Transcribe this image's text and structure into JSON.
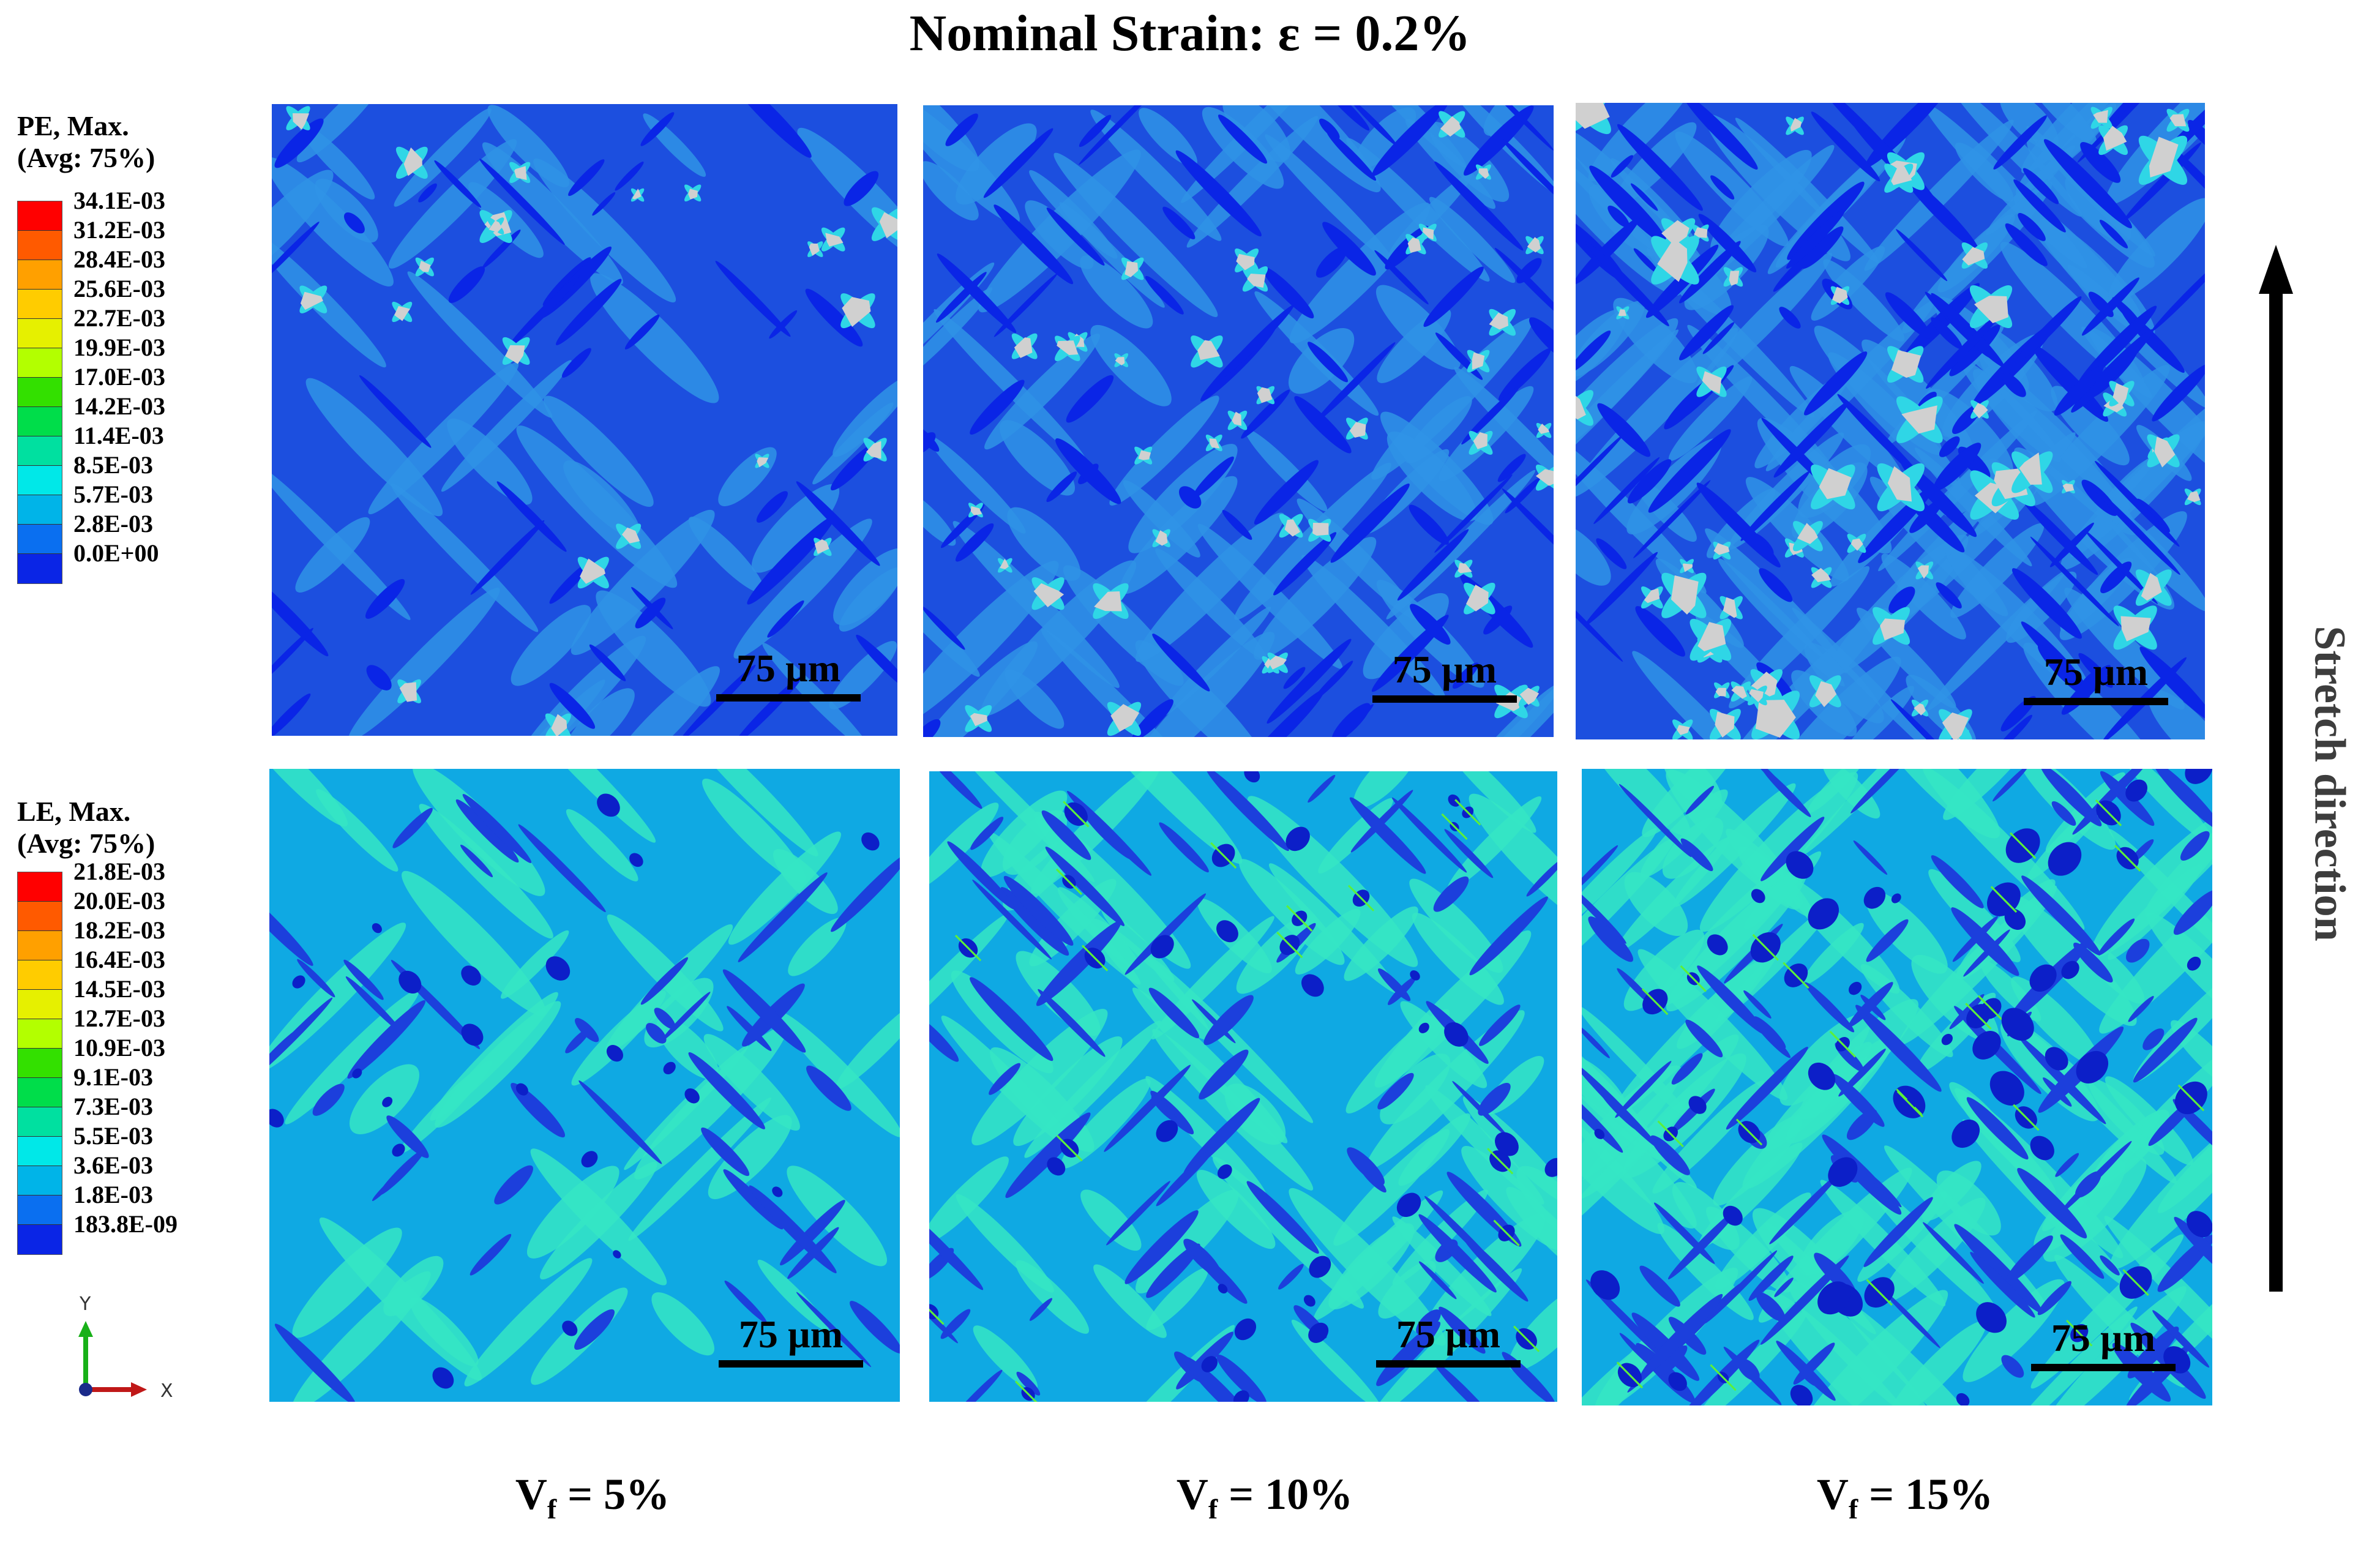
{
  "title": "Nominal Strain: ε = 0.2%",
  "legend_pe": {
    "header_line1": "PE, Max.",
    "header_line2": "(Avg: 75%)",
    "labels": [
      "34.1E-03",
      "31.2E-03",
      "28.4E-03",
      "25.6E-03",
      "22.7E-03",
      "19.9E-03",
      "17.0E-03",
      "14.2E-03",
      "11.4E-03",
      "8.5E-03",
      "5.7E-03",
      "2.8E-03",
      "0.0E+00"
    ]
  },
  "legend_le": {
    "header_line1": "LE, Max.",
    "header_line2": "(Avg: 75%)",
    "labels": [
      "21.8E-03",
      "20.0E-03",
      "18.2E-03",
      "16.4E-03",
      "14.5E-03",
      "12.7E-03",
      "10.9E-03",
      "9.1E-03",
      "7.3E-03",
      "5.5E-03",
      "3.6E-03",
      "1.8E-03",
      "183.8E-09"
    ]
  },
  "colormap": [
    "#ff0000",
    "#ff5a00",
    "#ffa000",
    "#ffcc00",
    "#e6f000",
    "#b3ff00",
    "#33e000",
    "#00dd4a",
    "#00e0a0",
    "#00e8e8",
    "#00b4e8",
    "#0a6ff0",
    "#0a25e6"
  ],
  "colors": {
    "pe_background": "#1c4fdf",
    "pe_dark": "#0a25e6",
    "pe_mid": "#2f93e6",
    "le_background": "#0fa9e3",
    "le_light": "#35e6c4",
    "le_dark": "#1c3fdc",
    "void_gray": "#d0d0d0"
  },
  "scale_bar_label": "75 µm",
  "columns": [
    {
      "main": "V",
      "sub": "f",
      "value": " = 5%"
    },
    {
      "main": "V",
      "sub": "f",
      "value": " = 10%"
    },
    {
      "main": "V",
      "sub": "f",
      "value": " = 15%"
    }
  ],
  "stretch_label": "Stretch direction",
  "axis_labels": {
    "y": "Y",
    "x": "X"
  },
  "panels": [
    {
      "id": "pe-5",
      "field": "PE",
      "vf": 5
    },
    {
      "id": "pe-10",
      "field": "PE",
      "vf": 10
    },
    {
      "id": "pe-15",
      "field": "PE",
      "vf": 15
    },
    {
      "id": "le-5",
      "field": "LE",
      "vf": 5
    },
    {
      "id": "le-10",
      "field": "LE",
      "vf": 10
    },
    {
      "id": "le-15",
      "field": "LE",
      "vf": 15
    }
  ]
}
